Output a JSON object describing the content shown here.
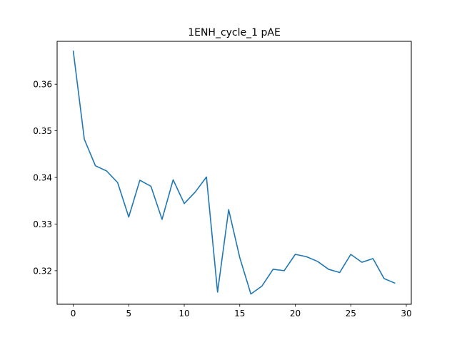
{
  "chart_data": {
    "type": "line",
    "title": "1ENH_cycle_1 pAE",
    "xlabel": "",
    "ylabel": "",
    "xlim": [
      -1.45,
      30.45
    ],
    "ylim": [
      0.3128,
      0.3692
    ],
    "xticks": [
      0,
      5,
      10,
      15,
      20,
      25,
      30
    ],
    "yticks": [
      0.32,
      0.33,
      0.34,
      0.35,
      0.36
    ],
    "grid": false,
    "legend": "none",
    "series": [
      {
        "color": "#1f77b4",
        "x": [
          0,
          1,
          2,
          3,
          4,
          5,
          6,
          7,
          8,
          9,
          10,
          11,
          12,
          13,
          14,
          15,
          16,
          17,
          18,
          19,
          20,
          21,
          22,
          23,
          24,
          25,
          26,
          27,
          28,
          29
        ],
        "y": [
          0.3672,
          0.3482,
          0.3425,
          0.3414,
          0.3389,
          0.3315,
          0.3394,
          0.3381,
          0.331,
          0.3395,
          0.3344,
          0.3369,
          0.3401,
          0.3154,
          0.3331,
          0.3228,
          0.315,
          0.3167,
          0.3203,
          0.32,
          0.3235,
          0.323,
          0.322,
          0.3203,
          0.3196,
          0.3235,
          0.3218,
          0.3226,
          0.3183,
          0.3173
        ]
      }
    ]
  }
}
